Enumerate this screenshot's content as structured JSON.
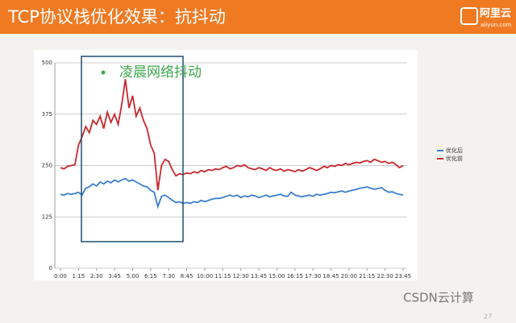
{
  "header": {
    "title": "TCP协议栈优化效果：抗抖动",
    "logo": "阿里云",
    "logo_sub": "aliyun.com"
  },
  "chart_data": {
    "type": "line",
    "annotation": "凌晨网络抖动",
    "x": [
      0,
      15,
      30,
      45,
      60,
      75,
      90,
      105,
      120,
      135,
      150,
      165,
      180,
      195,
      210,
      225,
      240,
      255,
      270,
      285,
      300,
      315,
      330,
      345,
      360,
      375,
      390,
      405,
      420,
      435,
      450,
      465,
      480,
      495,
      510,
      525,
      540,
      555,
      570,
      585,
      600,
      615,
      630,
      645,
      660,
      675,
      690,
      705,
      720,
      735,
      750,
      765,
      780,
      795,
      810,
      825,
      840,
      855,
      870,
      885,
      900,
      915,
      930,
      945,
      960,
      975,
      990,
      1005,
      1020,
      1035,
      1050,
      1065,
      1080,
      1095,
      1110,
      1125,
      1140,
      1155,
      1170,
      1185,
      1200,
      1215,
      1230,
      1245,
      1260,
      1275,
      1290,
      1305,
      1320,
      1335,
      1350,
      1365,
      1380,
      1395,
      1410,
      1425
    ],
    "xlim": [
      0,
      1425
    ],
    "xticks": [
      {
        "value": 0,
        "label": "0:00"
      },
      {
        "value": 75,
        "label": "1:15"
      },
      {
        "value": 150,
        "label": "2:30"
      },
      {
        "value": 225,
        "label": "3:45"
      },
      {
        "value": 300,
        "label": "5:00"
      },
      {
        "value": 375,
        "label": "6:15"
      },
      {
        "value": 450,
        "label": "7:30"
      },
      {
        "value": 525,
        "label": "8:45"
      },
      {
        "value": 600,
        "label": "10:00"
      },
      {
        "value": 675,
        "label": "11:15"
      },
      {
        "value": 750,
        "label": "12:30"
      },
      {
        "value": 825,
        "label": "13:45"
      },
      {
        "value": 900,
        "label": "15:00"
      },
      {
        "value": 975,
        "label": "16:15"
      },
      {
        "value": 1050,
        "label": "17:30"
      },
      {
        "value": 1125,
        "label": "18:45"
      },
      {
        "value": 1200,
        "label": "20:00"
      },
      {
        "value": 1275,
        "label": "21:15"
      },
      {
        "value": 1350,
        "label": "22:30"
      },
      {
        "value": 1425,
        "label": "23:45"
      }
    ],
    "ylim": [
      0,
      500
    ],
    "yticks": [
      0,
      125,
      250,
      375,
      500
    ],
    "grid": true,
    "legend": "right",
    "series": [
      {
        "name": "优化后",
        "color": "#3a7fd0",
        "values": [
          180,
          178,
          182,
          180,
          182,
          185,
          178,
          195,
          198,
          205,
          200,
          210,
          205,
          212,
          208,
          215,
          210,
          215,
          218,
          212,
          215,
          210,
          205,
          200,
          198,
          190,
          185,
          150,
          175,
          178,
          172,
          165,
          160,
          162,
          158,
          160,
          158,
          162,
          160,
          165,
          162,
          165,
          168,
          170,
          170,
          172,
          175,
          178,
          175,
          178,
          172,
          176,
          174,
          178,
          176,
          172,
          175,
          178,
          174,
          176,
          178,
          180,
          176,
          175,
          185,
          178,
          176,
          174,
          176,
          178,
          175,
          180,
          178,
          180,
          182,
          185,
          184,
          186,
          188,
          185,
          188,
          190,
          192,
          195,
          196,
          198,
          195,
          192,
          194,
          196,
          190,
          185,
          186,
          182,
          180,
          178
        ]
      },
      {
        "name": "优化前",
        "color": "#c8282d",
        "values": [
          245,
          242,
          248,
          250,
          252,
          300,
          320,
          345,
          330,
          360,
          350,
          370,
          340,
          380,
          355,
          375,
          350,
          400,
          460,
          390,
          420,
          370,
          390,
          360,
          340,
          300,
          280,
          190,
          250,
          265,
          260,
          240,
          225,
          230,
          228,
          232,
          230,
          235,
          232,
          238,
          235,
          240,
          238,
          242,
          240,
          245,
          248,
          242,
          245,
          250,
          248,
          252,
          245,
          242,
          240,
          245,
          242,
          238,
          245,
          240,
          238,
          242,
          236,
          240,
          238,
          235,
          240,
          236,
          240,
          245,
          242,
          238,
          242,
          248,
          245,
          250,
          248,
          252,
          250,
          255,
          252,
          255,
          258,
          256,
          260,
          262,
          258,
          265,
          262,
          258,
          260,
          255,
          258,
          252,
          245,
          250
        ]
      }
    ]
  },
  "footer": {
    "page_number": "27",
    "watermark": "CSDN云计算"
  }
}
